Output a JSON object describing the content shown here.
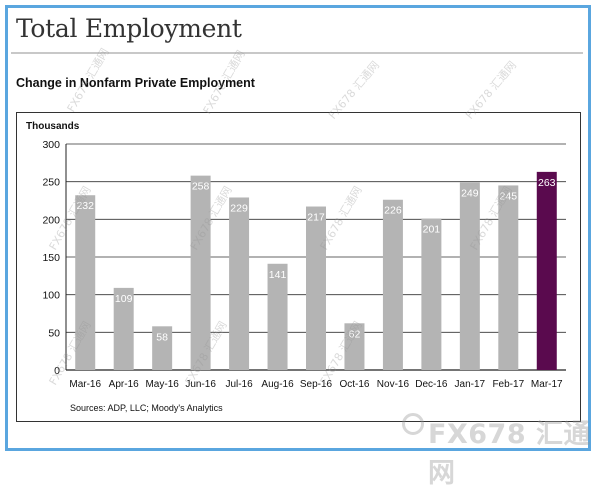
{
  "header": {
    "title": "Total Employment",
    "subtitle": "Change in Nonfarm Private Employment"
  },
  "chart_data": {
    "type": "bar",
    "ylabel": "Thousands",
    "ylim": [
      0,
      300
    ],
    "yticks": [
      0,
      50,
      100,
      150,
      200,
      250,
      300
    ],
    "grid": true,
    "categories": [
      "Mar-16",
      "Apr-16",
      "May-16",
      "Jun-16",
      "Jul-16",
      "Aug-16",
      "Sep-16",
      "Oct-16",
      "Nov-16",
      "Dec-16",
      "Jan-17",
      "Feb-17",
      "Mar-17"
    ],
    "values": [
      232,
      109,
      58,
      258,
      229,
      141,
      217,
      62,
      226,
      201,
      249,
      245,
      263
    ],
    "colors": {
      "default": "#b4b4b4",
      "highlight": "#5a0a4e"
    },
    "highlight_index": 12
  },
  "source": "Sources: ADP, LLC; Moody's Analytics",
  "watermarks": {
    "small_text": "FX678 汇通网",
    "brand_text": "FX678 汇通网"
  }
}
